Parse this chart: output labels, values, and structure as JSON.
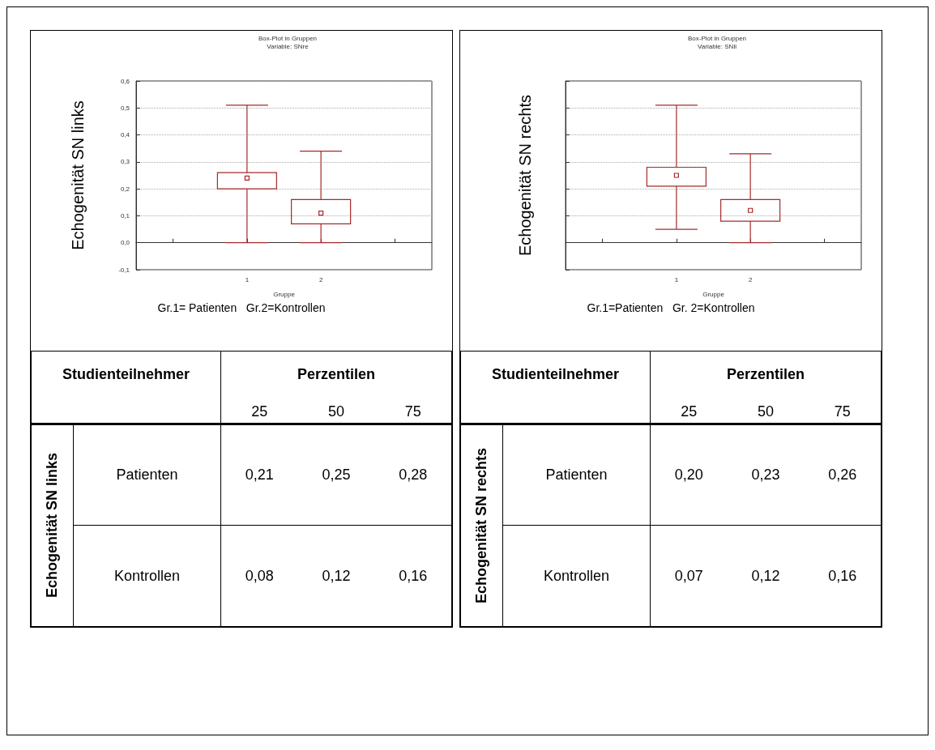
{
  "chart_data": [
    {
      "type": "box",
      "title": "Box-Plot in Gruppen",
      "subtitle": "Variable: SNre",
      "xlabel": "Gruppe",
      "ylabel": "Echogenität SN links",
      "categories": [
        "1",
        "2"
      ],
      "color": "#a52a2a",
      "grid": "y",
      "ylim": [
        -0.1,
        0.6
      ],
      "yticks": [
        {
          "value": -0.1,
          "label": "-0,1"
        },
        {
          "value": 0,
          "label": "0,0"
        },
        {
          "value": 0.1,
          "label": "0,1"
        },
        {
          "value": 0.2,
          "label": "0,2"
        },
        {
          "value": 0.3,
          "label": "0,3"
        },
        {
          "value": 0.4,
          "label": "0,4"
        },
        {
          "value": 0.5,
          "label": "0,5"
        },
        {
          "value": 0.6,
          "label": "0,6"
        }
      ],
      "boxes": [
        {
          "low": 0,
          "q1": 0.2,
          "median": 0.24,
          "q3": 0.26,
          "high": 0.51
        },
        {
          "low": 0,
          "q1": 0.07,
          "median": 0.11,
          "q3": 0.16,
          "high": 0.34
        }
      ],
      "annotations": [
        "Gr.1= Patienten   Gr.2=Kontrollen"
      ]
    },
    {
      "type": "box",
      "title": "Box-Plot in Gruppen",
      "subtitle": "Variable: SNli",
      "xlabel": "Gruppe",
      "ylabel": "Echogenität SN rechts",
      "categories": [
        "1",
        "2"
      ],
      "color": "#a52a2a",
      "grid": "y",
      "ylim": [
        -0.1,
        0.6
      ],
      "yticks": [
        -0.1,
        0,
        0.1,
        0.2,
        0.3,
        0.4,
        0.5,
        0.6
      ],
      "tick_labels": "x",
      "boxes": [
        {
          "low": 0.05,
          "q1": 0.21,
          "median": 0.25,
          "q3": 0.28,
          "high": 0.51
        },
        {
          "low": 0,
          "q1": 0.08,
          "median": 0.12,
          "q3": 0.16,
          "high": 0.33
        }
      ],
      "annotations": [
        "Gr.1=Patienten   Gr. 2=Kontrollen"
      ]
    },
    {
      "type": "other",
      "annotations": [
        "Studienteilnehmer",
        "Perzentilen",
        "25",
        "50",
        "75",
        "Echogenität SN links",
        "Patienten",
        "0,21",
        "0,25",
        "0,28",
        "Kontrollen",
        "0,08",
        "0,12",
        "0,16"
      ]
    },
    {
      "type": "other",
      "annotations": [
        "Studienteilnehmer",
        "Perzentilen",
        "25",
        "50",
        "75",
        "Echogenität SN rechts",
        "Patienten",
        "0,20",
        "0,23",
        "0,26",
        "Kontrollen",
        "0,07",
        "0,12",
        "0,16"
      ]
    }
  ]
}
